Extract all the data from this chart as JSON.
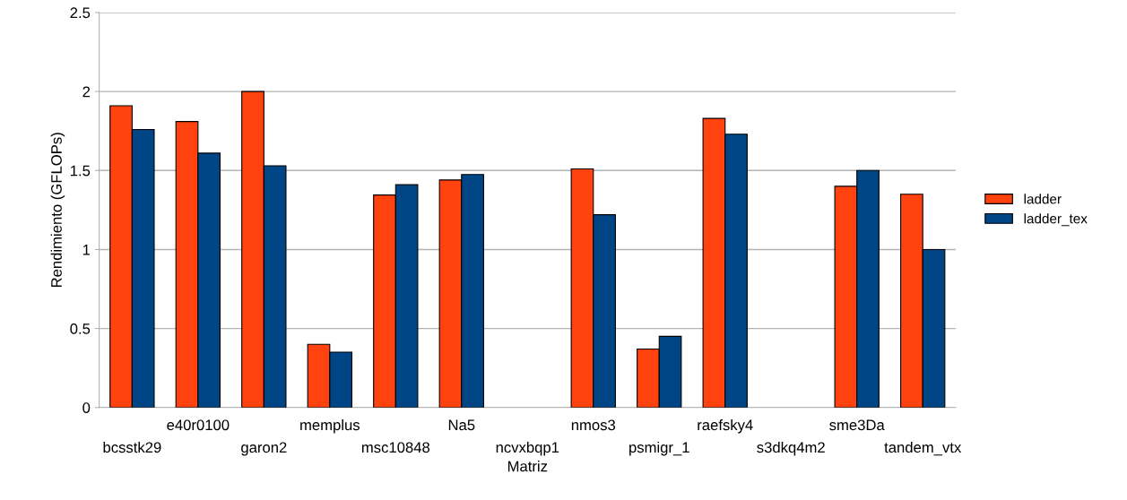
{
  "chart_data": {
    "type": "bar",
    "xlabel": "Matriz",
    "ylabel": "Rendimiento (GFLOPs)",
    "categories": [
      "bcsstk29",
      "e40r0100",
      "garon2",
      "memplus",
      "msc10848",
      "Na5",
      "ncvxbqp1",
      "nmos3",
      "psmigr_1",
      "raefsky4",
      "s3dkq4m2",
      "sme3Da",
      "tandem_vtx"
    ],
    "series": [
      {
        "name": "ladder",
        "color": "#ff420e",
        "values": [
          1.91,
          1.81,
          2.0,
          0.4,
          1.345,
          1.44,
          null,
          1.51,
          0.37,
          1.83,
          null,
          1.4,
          1.35
        ]
      },
      {
        "name": "ladder_tex",
        "color": "#004586",
        "values": [
          1.76,
          1.61,
          1.53,
          0.35,
          1.41,
          1.475,
          null,
          1.22,
          0.45,
          1.73,
          null,
          1.5,
          1.0
        ]
      }
    ],
    "ylim": [
      0,
      2.5
    ],
    "yticks": [
      0,
      0.5,
      1,
      1.5,
      2,
      2.5
    ],
    "grid": "y",
    "legend": "right"
  }
}
